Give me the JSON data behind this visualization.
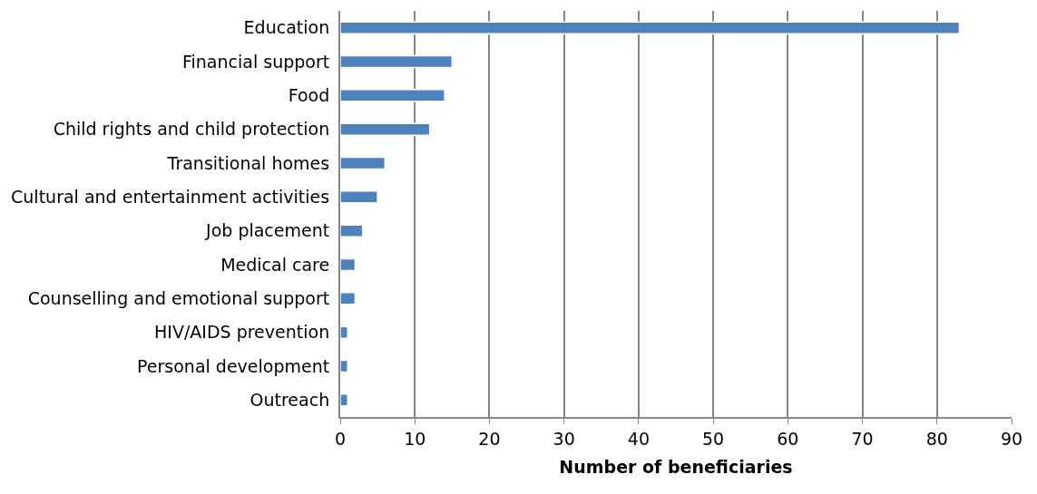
{
  "chart_data": {
    "type": "bar",
    "orientation": "horizontal",
    "xlabel": "Number of beneficiaries",
    "categories": [
      "Education",
      "Financial support",
      "Food",
      "Child rights and child protection",
      "Transitional homes",
      "Cultural and entertainment activities",
      "Job placement",
      "Medical care",
      "Counselling and emotional support",
      "HIV/AIDS prevention",
      "Personal development",
      "Outreach"
    ],
    "values": [
      83,
      15,
      14,
      12,
      6,
      5,
      3,
      2,
      2,
      1,
      1,
      1
    ],
    "color": "#4f81bd",
    "xlim": [
      0,
      90
    ],
    "xticks": [
      0,
      10,
      20,
      30,
      40,
      50,
      60,
      70,
      80,
      90
    ],
    "grid": "x",
    "legend": false
  }
}
